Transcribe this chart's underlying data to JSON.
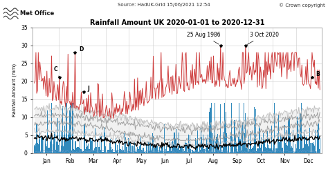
{
  "title": "Rainfall Amount UK 2020-01-01 to 2020-12-31",
  "source_text": "Source: HadUK-Grid 15/06/2021 12:54",
  "copyright_text": "© Crown copyright",
  "ylabel": "Rainfall Amount (mm)",
  "ylim": [
    0,
    35
  ],
  "yticks": [
    0,
    5,
    10,
    15,
    20,
    25,
    30,
    35
  ],
  "months": [
    "Jan",
    "Feb",
    "Mar",
    "Apr",
    "May",
    "Jun",
    "Jul",
    "Aug",
    "Sep",
    "Oct",
    "Nov",
    "Dec"
  ],
  "color_actual": "#1a7db5",
  "color_mean": "#000000",
  "color_lowest": "#6699cc",
  "color_5pct": "#bbbbbb",
  "color_10pct": "#999999",
  "color_90pct": "#999999",
  "color_95pct": "#bbbbbb",
  "color_highest": "#cc3333",
  "background_color": "#ffffff"
}
